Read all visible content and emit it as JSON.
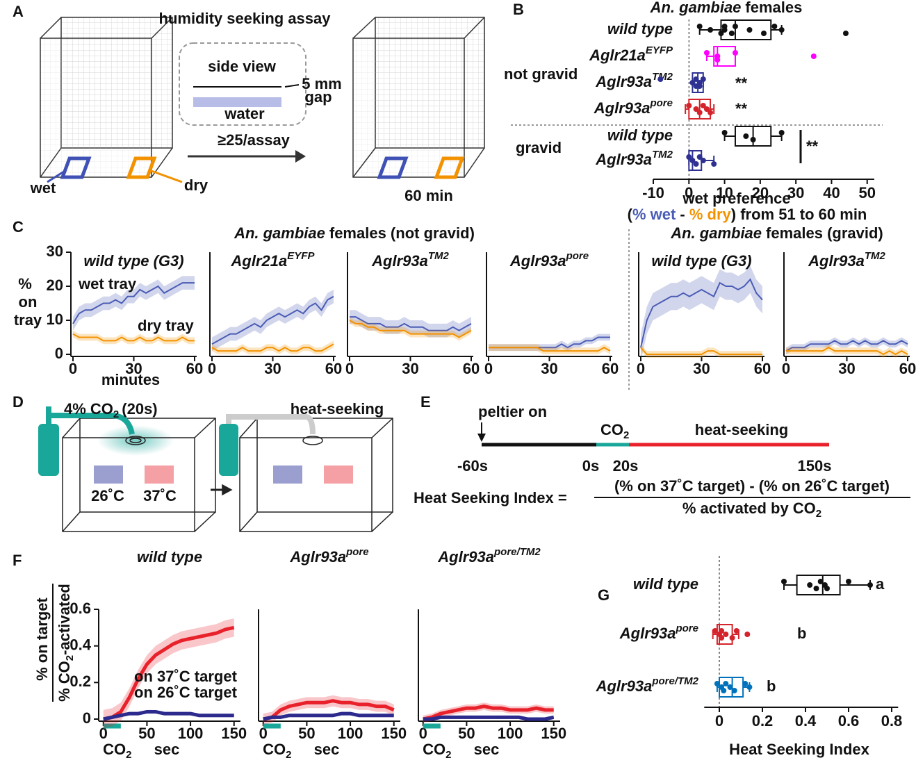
{
  "panel_labels": [
    "A",
    "B",
    "C",
    "D",
    "E",
    "F",
    "G"
  ],
  "assay": {
    "title": "humidity seeking assay",
    "side_view": "side view",
    "gap_size": "5 mm",
    "gap": "gap",
    "water": "water",
    "count": "≥25/assay",
    "wet": "wet",
    "dry": "dry",
    "duration": "60 min"
  },
  "panel_c": {
    "group_titles": [
      {
        "species": "An. gambiae",
        "rest": "females (not gravid)"
      },
      {
        "species": "An. gambiae",
        "rest": "females (gravid)"
      }
    ]
  },
  "heat_assay": {
    "co2": "4% CO",
    "co2_sub": "2",
    "co2_time": "(20s)",
    "heat_seeking": "heat-seeking",
    "cool": "26˚C",
    "warm": "37˚C"
  },
  "timeline": {
    "event": "peltier on",
    "co2": "CO",
    "co2_sub": "2",
    "phase": "heat-seeking",
    "times": [
      "-60s",
      "0s",
      "20s",
      "150s"
    ]
  },
  "index_formula": {
    "name": "Heat Seeking Index =",
    "numerator": "(% on 37˚C target) - (% on 26˚C target)",
    "denominator": "% activated by CO",
    "denominator_sub": "2"
  },
  "chart_data": [
    {
      "type": "box",
      "title": "An. gambiae",
      "title_rest": "females",
      "categories": [
        "wild type",
        "Aglr21a",
        "Aglr93a",
        "Aglr93a",
        "wild type",
        "Aglr93a"
      ],
      "category_superscripts": [
        null,
        "EYFP",
        "TM2",
        "pore",
        null,
        "TM2"
      ],
      "colors": [
        "#111111",
        "#ff00ff",
        "#2e3192",
        "#d4232a",
        "#111111",
        "#2e3192"
      ],
      "group_labels": [
        "not gravid",
        "gravid"
      ],
      "boxes": [
        {
          "low": 3,
          "q1": 9,
          "median": 13,
          "q3": 23,
          "high": 26,
          "points": [
            3,
            6,
            9,
            10,
            10,
            12,
            13,
            17,
            21,
            24,
            26,
            44
          ]
        },
        {
          "low": 5,
          "q1": 7,
          "median": 8,
          "q3": 13,
          "high": 13,
          "points": [
            5,
            8,
            8,
            13,
            35
          ]
        },
        {
          "low": 1,
          "q1": 1,
          "median": 2.5,
          "q3": 4,
          "high": 4,
          "points": [
            -8,
            1,
            2,
            2,
            3,
            3,
            4
          ]
        },
        {
          "low": -1,
          "q1": 0,
          "median": 3,
          "q3": 6,
          "high": 7,
          "points": [
            0,
            2,
            3,
            4,
            5,
            6
          ]
        },
        {
          "low": 10,
          "q1": 13,
          "median": 18,
          "q3": 23,
          "high": 26,
          "points": [
            10,
            16,
            18,
            26
          ]
        },
        {
          "low": 0,
          "q1": 0,
          "median": 1,
          "q3": 3.5,
          "high": 7,
          "points": [
            0,
            1,
            2,
            3,
            4,
            7
          ]
        }
      ],
      "annotations": [
        "**",
        "**",
        "**"
      ],
      "xlim": [
        -10,
        52
      ],
      "xticks": [
        -10,
        0,
        10,
        20,
        30,
        40,
        50
      ],
      "zero_line": true,
      "xlabel": "wet preference",
      "xlabel_parts": [
        "(",
        "% wet",
        " - ",
        "% dry",
        ") from 51 to 60 min"
      ],
      "xlabel_part_colors": [
        "#111111",
        "#4a5cb5",
        "#111111",
        "#f39200",
        "#111111"
      ]
    },
    {
      "type": "line",
      "title": "wild type (G3)",
      "title_color": "#111111",
      "x": [
        0,
        3,
        6,
        9,
        12,
        15,
        18,
        21,
        24,
        27,
        30,
        33,
        36,
        39,
        42,
        45,
        48,
        51,
        54,
        57,
        60
      ],
      "series": [
        {
          "name": "wet tray",
          "color": "#4a5cb5",
          "error": 2,
          "values": [
            9,
            12,
            13,
            13,
            14,
            15,
            15,
            16,
            15,
            17,
            17,
            19,
            18,
            19,
            20,
            18,
            19,
            20,
            21,
            21,
            21
          ]
        },
        {
          "name": "dry tray",
          "color": "#f39200",
          "error": 1,
          "values": [
            6,
            5,
            5,
            5,
            5,
            4,
            4,
            4,
            5,
            4,
            4,
            5,
            4,
            4,
            5,
            4,
            4,
            4,
            5,
            4,
            4
          ]
        }
      ],
      "xlim": [
        0,
        60
      ],
      "xticks": [
        0,
        30,
        60
      ],
      "ylim": [
        0,
        30
      ],
      "yticks": [
        0,
        10,
        20,
        30
      ],
      "xlabel": "minutes",
      "ylabel_lines": [
        "%",
        "on",
        "tray"
      ]
    },
    {
      "type": "line",
      "title": "Aglr21a",
      "title_superscript": "EYFP",
      "title_color": "#ff00ff",
      "x": [
        0,
        3,
        6,
        9,
        12,
        15,
        18,
        21,
        24,
        27,
        30,
        33,
        36,
        39,
        42,
        45,
        48,
        51,
        54,
        57,
        60
      ],
      "series": [
        {
          "color": "#4a5cb5",
          "error": 2,
          "values": [
            3,
            4,
            5,
            6,
            6,
            7,
            8,
            9,
            8,
            10,
            11,
            12,
            11,
            12,
            13,
            12,
            14,
            15,
            13,
            16,
            17
          ]
        },
        {
          "color": "#f39200",
          "error": 1,
          "values": [
            2,
            1,
            1,
            1,
            1,
            2,
            1,
            1,
            1,
            2,
            2,
            1,
            2,
            1,
            1,
            2,
            2,
            1,
            1,
            2,
            3
          ]
        }
      ],
      "xlim": [
        0,
        60
      ],
      "xticks": [
        0,
        30,
        60
      ],
      "ylim": [
        0,
        30
      ]
    },
    {
      "type": "line",
      "title": "Aglr93a",
      "title_superscript": "TM2",
      "title_color": "#2e3192",
      "x": [
        0,
        3,
        6,
        9,
        12,
        15,
        18,
        21,
        24,
        27,
        30,
        33,
        36,
        39,
        42,
        45,
        48,
        51,
        54,
        57,
        60
      ],
      "series": [
        {
          "color": "#4a5cb5",
          "error": 2,
          "values": [
            11,
            11,
            10,
            9,
            9,
            9,
            8,
            8,
            8,
            9,
            8,
            8,
            8,
            7,
            7,
            7,
            7,
            8,
            7,
            8,
            9
          ]
        },
        {
          "color": "#f39200",
          "error": 1,
          "values": [
            10,
            9,
            9,
            8,
            8,
            7,
            7,
            7,
            7,
            7,
            6,
            6,
            6,
            6,
            6,
            6,
            6,
            6,
            5,
            6,
            7
          ]
        }
      ],
      "xlim": [
        0,
        60
      ],
      "xticks": [
        0,
        30,
        60
      ],
      "ylim": [
        0,
        30
      ]
    },
    {
      "type": "line",
      "title": "Aglr93a",
      "title_superscript": "pore",
      "title_color": "#d4232a",
      "x": [
        0,
        3,
        6,
        9,
        12,
        15,
        18,
        21,
        24,
        27,
        30,
        33,
        36,
        39,
        42,
        45,
        48,
        51,
        54,
        57,
        60
      ],
      "series": [
        {
          "color": "#4a5cb5",
          "error": 1,
          "values": [
            2,
            2,
            2,
            2,
            2,
            2,
            2,
            2,
            2,
            2,
            2,
            2,
            3,
            2,
            3,
            3,
            4,
            4,
            5,
            5,
            5
          ]
        },
        {
          "color": "#f39200",
          "error": 1,
          "values": [
            2,
            2,
            2,
            2,
            2,
            2,
            2,
            2,
            2,
            1,
            1,
            1,
            1,
            1,
            1,
            1,
            1,
            1,
            1,
            2,
            1
          ]
        }
      ],
      "xlim": [
        0,
        60
      ],
      "xticks": [
        0,
        30,
        60
      ],
      "ylim": [
        0,
        30
      ]
    },
    {
      "type": "line",
      "title": "wild type (G3)",
      "title_color": "#111111",
      "x": [
        0,
        3,
        6,
        9,
        12,
        15,
        18,
        21,
        24,
        27,
        30,
        33,
        36,
        39,
        42,
        45,
        48,
        51,
        54,
        57,
        60
      ],
      "series": [
        {
          "color": "#4a5cb5",
          "error": 4,
          "values": [
            2,
            10,
            14,
            15,
            16,
            17,
            17,
            18,
            17,
            18,
            19,
            18,
            17,
            21,
            20,
            20,
            19,
            20,
            22,
            18,
            16
          ]
        },
        {
          "color": "#f39200",
          "error": 1,
          "values": [
            2,
            0,
            0,
            0,
            0,
            0,
            0,
            0,
            0,
            0,
            0,
            1,
            1,
            0,
            0,
            0,
            0,
            0,
            0,
            0,
            0
          ]
        }
      ],
      "xlim": [
        0,
        60
      ],
      "xticks": [
        0,
        30,
        60
      ],
      "ylim": [
        0,
        30
      ]
    },
    {
      "type": "line",
      "title": "Aglr93a",
      "title_superscript": "TM2",
      "title_color": "#2e3192",
      "x": [
        0,
        3,
        6,
        9,
        12,
        15,
        18,
        21,
        24,
        27,
        30,
        33,
        36,
        39,
        42,
        45,
        48,
        51,
        54,
        57,
        60
      ],
      "series": [
        {
          "color": "#4a5cb5",
          "error": 1,
          "values": [
            1,
            2,
            2,
            2,
            3,
            3,
            3,
            3,
            4,
            3,
            3,
            4,
            3,
            4,
            3,
            3,
            4,
            3,
            3,
            4,
            3
          ]
        },
        {
          "color": "#f39200",
          "error": 1,
          "values": [
            1,
            1,
            1,
            1,
            1,
            1,
            1,
            2,
            1,
            1,
            1,
            1,
            1,
            1,
            1,
            1,
            0,
            1,
            0,
            1,
            0
          ]
        }
      ],
      "xlim": [
        0,
        60
      ],
      "xticks": [
        0,
        30,
        60
      ],
      "ylim": [
        0,
        30
      ]
    },
    {
      "type": "line",
      "title": "wild type",
      "title_color": "#111111",
      "x": [
        0,
        10,
        20,
        30,
        40,
        50,
        60,
        70,
        80,
        90,
        100,
        110,
        120,
        130,
        140,
        150
      ],
      "series": [
        {
          "name": "on 37˚C target",
          "color": "#e8212b",
          "error": 0.05,
          "values": [
            0,
            0.01,
            0.04,
            0.12,
            0.22,
            0.3,
            0.35,
            0.38,
            0.41,
            0.43,
            0.44,
            0.45,
            0.46,
            0.47,
            0.49,
            0.5
          ]
        },
        {
          "name": "on 26˚C target",
          "color": "#2c2a8c",
          "error": 0.01,
          "values": [
            0,
            0.01,
            0.02,
            0.03,
            0.03,
            0.04,
            0.04,
            0.03,
            0.03,
            0.03,
            0.03,
            0.02,
            0.02,
            0.02,
            0.02,
            0.02
          ]
        }
      ],
      "xlim": [
        -3,
        155
      ],
      "xticks": [
        0,
        50,
        100,
        150
      ],
      "ylim": [
        0,
        0.6
      ],
      "yticks": [
        0,
        0.2,
        0.4,
        0.6
      ],
      "xlabel": "sec",
      "ylabel": "% on target",
      "ylabel2": "% CO",
      "ylabel2_sub": "2",
      "ylabel2_rest": "-activated",
      "stimulus": [
        0,
        20
      ],
      "stimulus_label": "CO",
      "stimulus_label_sub": "2"
    },
    {
      "type": "line",
      "title": "Aglr93a",
      "title_superscript": "pore",
      "title_color": "#d4232a",
      "x": [
        0,
        10,
        20,
        30,
        40,
        50,
        60,
        70,
        80,
        90,
        100,
        110,
        120,
        130,
        140,
        150
      ],
      "series": [
        {
          "color": "#e8212b",
          "error": 0.03,
          "values": [
            0,
            0.01,
            0.05,
            0.07,
            0.08,
            0.09,
            0.09,
            0.09,
            0.1,
            0.09,
            0.09,
            0.08,
            0.08,
            0.07,
            0.07,
            0.05
          ]
        },
        {
          "color": "#2c2a8c",
          "error": 0.01,
          "values": [
            0,
            0.01,
            0.01,
            0.02,
            0.02,
            0.02,
            0.02,
            0.02,
            0.02,
            0.03,
            0.03,
            0.02,
            0.02,
            0.02,
            0.02,
            0.02
          ]
        }
      ],
      "xlim": [
        -3,
        155
      ],
      "xticks": [
        0,
        50,
        100,
        150
      ],
      "ylim": [
        0,
        0.6
      ],
      "xlabel": "sec",
      "stimulus": [
        0,
        20
      ],
      "stimulus_label": "CO",
      "stimulus_label_sub": "2"
    },
    {
      "type": "line",
      "title": "Aglr93a",
      "title_superscript": "pore/TM2",
      "title_color": "#0072bc",
      "x": [
        0,
        10,
        20,
        30,
        40,
        50,
        60,
        70,
        80,
        90,
        100,
        110,
        120,
        130,
        140,
        150
      ],
      "series": [
        {
          "color": "#e8212b",
          "error": 0.02,
          "values": [
            0,
            0.01,
            0.03,
            0.04,
            0.05,
            0.06,
            0.06,
            0.07,
            0.06,
            0.06,
            0.05,
            0.05,
            0.05,
            0.06,
            0.05,
            0.05
          ]
        },
        {
          "color": "#2c2a8c",
          "error": 0.01,
          "values": [
            0,
            0,
            0.01,
            0.01,
            0.01,
            0.01,
            0.01,
            0.01,
            0.01,
            0.01,
            0.01,
            0.01,
            0,
            0,
            0,
            0.01
          ]
        }
      ],
      "xlim": [
        -3,
        155
      ],
      "xticks": [
        0,
        50,
        100,
        150
      ],
      "ylim": [
        0,
        0.6
      ],
      "xlabel": "sec",
      "stimulus": [
        0,
        20
      ],
      "stimulus_label": "CO",
      "stimulus_label_sub": "2"
    },
    {
      "type": "box",
      "categories": [
        "wild type",
        "Aglr93a",
        "Aglr93a"
      ],
      "category_superscripts": [
        null,
        "pore",
        "pore/TM2"
      ],
      "colors": [
        "#111111",
        "#d4232a",
        "#0072bc"
      ],
      "boxes": [
        {
          "low": 0.3,
          "q1": 0.36,
          "median": 0.48,
          "q3": 0.56,
          "high": 0.7,
          "points": [
            0.3,
            0.42,
            0.45,
            0.47,
            0.49,
            0.5,
            0.6,
            0.7
          ]
        },
        {
          "low": -0.03,
          "q1": -0.01,
          "median": 0,
          "q3": 0.06,
          "high": 0.09,
          "points": [
            -0.02,
            0,
            0.01,
            0.01,
            0.03,
            0.06,
            0.08,
            0.13
          ]
        },
        {
          "low": -0.01,
          "q1": 0,
          "median": 0.06,
          "q3": 0.11,
          "high": 0.14,
          "points": [
            -0.01,
            0.01,
            0.02,
            0.03,
            0.05,
            0.07,
            0.12,
            0.14
          ]
        }
      ],
      "annotations": [
        "a",
        "b",
        "b"
      ],
      "xlim": [
        -0.07,
        0.83
      ],
      "xticks": [
        0,
        0.2,
        0.4,
        0.6,
        0.8
      ],
      "zero_line": true,
      "xlabel": "Heat Seeking Index"
    }
  ]
}
